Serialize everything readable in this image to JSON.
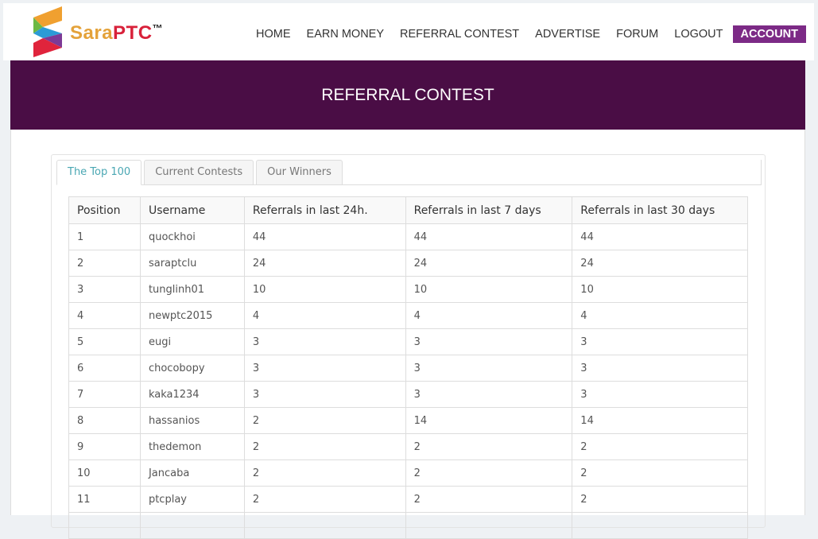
{
  "brand": {
    "part1": "Sara",
    "part2": "PTC",
    "tm": "™"
  },
  "nav": [
    "HOME",
    "EARN MONEY",
    "REFERRAL CONTEST",
    "ADVERTISE",
    "FORUM",
    "LOGOUT",
    "ACCOUNT"
  ],
  "page_title": "REFERRAL CONTEST",
  "tabs": [
    "The Top 100",
    "Current Contests",
    "Our Winners"
  ],
  "table": {
    "headers": [
      "Position",
      "Username",
      "Referrals in last 24h.",
      "Referrals in last 7 days",
      "Referrals in last 30 days"
    ],
    "rows": [
      [
        "1",
        "quockhoi",
        "44",
        "44",
        "44"
      ],
      [
        "2",
        "saraptclu",
        "24",
        "24",
        "24"
      ],
      [
        "3",
        "tunglinh01",
        "10",
        "10",
        "10"
      ],
      [
        "4",
        "newptc2015",
        "4",
        "4",
        "4"
      ],
      [
        "5",
        "eugi",
        "3",
        "3",
        "3"
      ],
      [
        "6",
        "chocobopy",
        "3",
        "3",
        "3"
      ],
      [
        "7",
        "kaka1234",
        "3",
        "3",
        "3"
      ],
      [
        "8",
        "hassanios",
        "2",
        "14",
        "14"
      ],
      [
        "9",
        "thedemon",
        "2",
        "2",
        "2"
      ],
      [
        "10",
        "Jancaba",
        "2",
        "2",
        "2"
      ],
      [
        "11",
        "ptcplay",
        "2",
        "2",
        "2"
      ],
      [
        "",
        "",
        "",
        "",
        ""
      ]
    ]
  }
}
